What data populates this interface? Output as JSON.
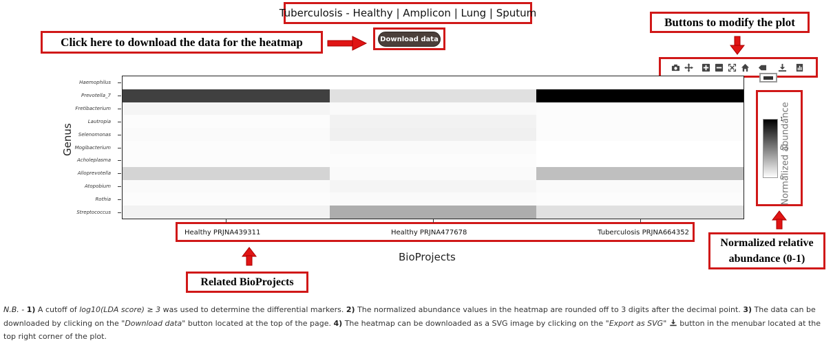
{
  "title": "Tuberculosis - Healthy | Amplicon | Lung | Sputum",
  "download": {
    "annotation": "Click here to download the data for the heatmap",
    "button_label": "Download data"
  },
  "toolbar": {
    "annotation": "Buttons to modify the plot",
    "buttons": [
      "camera-icon",
      "pan-icon",
      "zoom-in-icon",
      "zoom-out-icon",
      "autoscale-icon",
      "home-icon",
      "tag-icon",
      "download-svg-icon",
      "chart-icon"
    ]
  },
  "chart_data": {
    "type": "heatmap",
    "xlabel": "BioProjects",
    "ylabel": "Genus",
    "categories": [
      "Healthy PRJNA439311",
      "Healthy PRJNA477678",
      "Tuberculosis PRJNA664352"
    ],
    "rows": [
      "Haemophilus",
      "Prevotella_7",
      "Fretibacterium",
      "Lautropia",
      "Selenomonas",
      "Mogibacterium",
      "Acholeplasma",
      "Alloprevotella",
      "Atopobium",
      "Rothia",
      "Streptococcus"
    ],
    "values": [
      [
        0.0,
        0.0,
        0.0
      ],
      [
        0.75,
        0.12,
        1.0
      ],
      [
        0.04,
        0.02,
        0.01
      ],
      [
        0.01,
        0.05,
        0.01
      ],
      [
        0.02,
        0.06,
        0.01
      ],
      [
        0.01,
        0.02,
        0.0
      ],
      [
        0.01,
        0.01,
        0.0
      ],
      [
        0.17,
        0.02,
        0.25
      ],
      [
        0.02,
        0.04,
        0.02
      ],
      [
        0.01,
        0.02,
        0.01
      ],
      [
        0.05,
        0.32,
        0.12
      ]
    ],
    "colorbar": {
      "title": "Normalized abundance",
      "ticks": [
        "1",
        "0.5",
        "0"
      ],
      "range": [
        0,
        1
      ],
      "colors": [
        "#ffffff",
        "#000000"
      ]
    }
  },
  "annotations": {
    "bioprojects": "Related BioProjects",
    "abundance_line1": "Normalized relative",
    "abundance_line2": "abundance (0-1)"
  },
  "notes": {
    "nb": "N.B. -",
    "n1_num": "1)",
    "n1_pre": "A cutoff of",
    "n1_formula": "log10(LDA score) ≥ 3",
    "n1_post": "was used to determine the differential markers.",
    "n2_num": "2)",
    "n2_text": "The normalized abundance values in the heatmap are rounded off to 3 digits after the decimal point.",
    "n3_num": "3)",
    "n3_pre": "The data can be downloaded by clicking on the",
    "n3_quote": "\"Download data\"",
    "n3_post": "button located at the top of the page.",
    "n4_num": "4)",
    "n4_pre": "The heatmap can be downloaded as a SVG image by clicking on the",
    "n4_quote": "\"Export as SVG\"",
    "n4_post": "button in the menubar located at the top right corner of the plot."
  }
}
